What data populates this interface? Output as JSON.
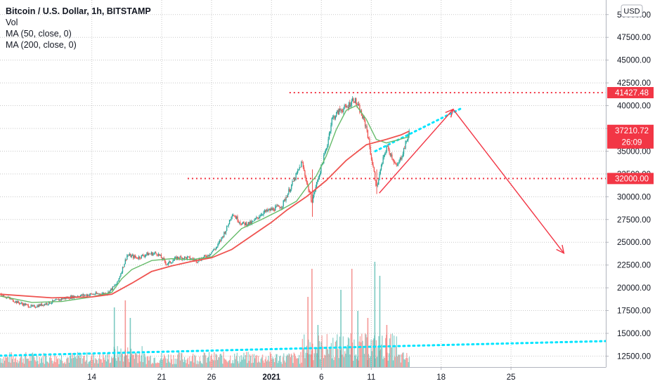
{
  "chart_data": {
    "type": "candlestick",
    "title": "Bitcoin / U.S. Dollar, 1h, BITSTAMP",
    "indicators": [
      "Vol",
      "MA (50, close, 0)",
      "MA (200, close, 0)"
    ],
    "currency": "USD",
    "y_ticks": [
      12500,
      15000,
      17500,
      20000,
      22500,
      25000,
      27500,
      30000,
      32500,
      35000,
      37500,
      40000,
      42500,
      45000,
      47500,
      50000
    ],
    "y_tick_labels": [
      "12500.00",
      "15000.00",
      "17500.00",
      "20000.00",
      "22500.00",
      "25000.00",
      "27500.00",
      "30000.00",
      "32500.00",
      "35000.00",
      "37500.00",
      "40000.00",
      "42500.00",
      "45000.00",
      "47500.00",
      "50000.00"
    ],
    "ylim": [
      11300,
      51600
    ],
    "x_ticks": [
      {
        "label": "14",
        "day": 14,
        "bold": false
      },
      {
        "label": "21",
        "day": 21,
        "bold": false
      },
      {
        "label": "26",
        "day": 26,
        "bold": false
      },
      {
        "label": "2021",
        "day": 32,
        "bold": true
      },
      {
        "label": "6",
        "day": 37,
        "bold": false
      },
      {
        "label": "11",
        "day": 42,
        "bold": false
      },
      {
        "label": "18",
        "day": 49,
        "bold": false
      },
      {
        "label": "25",
        "day": 56,
        "bold": false
      }
    ],
    "xlim_days": [
      4.8,
      65.5
    ],
    "price_path": [
      [
        4.8,
        19300
      ],
      [
        6.5,
        18400
      ],
      [
        8,
        17900
      ],
      [
        9.5,
        18300
      ],
      [
        11,
        18800
      ],
      [
        12.5,
        19100
      ],
      [
        14,
        19300
      ],
      [
        15.5,
        19400
      ],
      [
        16.5,
        20500
      ],
      [
        17.5,
        23600
      ],
      [
        18.5,
        23300
      ],
      [
        19.5,
        23700
      ],
      [
        20.5,
        23800
      ],
      [
        21.5,
        22600
      ],
      [
        22.5,
        23300
      ],
      [
        23.5,
        23300
      ],
      [
        24.5,
        23000
      ],
      [
        25.5,
        23500
      ],
      [
        26.5,
        24500
      ],
      [
        27.5,
        26600
      ],
      [
        28,
        28200
      ],
      [
        29,
        27000
      ],
      [
        30,
        27100
      ],
      [
        31,
        28200
      ],
      [
        32,
        28600
      ],
      [
        33,
        29000
      ],
      [
        34.5,
        32500
      ],
      [
        35,
        33800
      ],
      [
        35.5,
        31500
      ],
      [
        36,
        29500
      ],
      [
        36.5,
        31500
      ],
      [
        37.5,
        35500
      ],
      [
        38,
        38500
      ],
      [
        38.8,
        39500
      ],
      [
        39.5,
        39800
      ],
      [
        40.2,
        40800
      ],
      [
        40.8,
        39500
      ],
      [
        41.5,
        37500
      ],
      [
        42,
        34000
      ],
      [
        42.5,
        31000
      ],
      [
        43,
        33500
      ],
      [
        43.5,
        35500
      ],
      [
        44,
        34500
      ],
      [
        44.5,
        33200
      ],
      [
        45,
        34500
      ],
      [
        45.3,
        35500
      ],
      [
        45.8,
        37210
      ]
    ],
    "ma50": [
      [
        4.8,
        19100
      ],
      [
        8,
        18400
      ],
      [
        11,
        18500
      ],
      [
        14,
        19000
      ],
      [
        16,
        19500
      ],
      [
        17,
        21000
      ],
      [
        18,
        22000
      ],
      [
        20,
        23000
      ],
      [
        22,
        23200
      ],
      [
        24,
        23100
      ],
      [
        26,
        23400
      ],
      [
        27,
        24300
      ],
      [
        29,
        26500
      ],
      [
        31,
        27500
      ],
      [
        33,
        28600
      ],
      [
        34.5,
        29500
      ],
      [
        35.5,
        31000
      ],
      [
        36.5,
        32300
      ],
      [
        37.5,
        34500
      ],
      [
        38.5,
        37400
      ],
      [
        39.5,
        39500
      ],
      [
        40.5,
        40000
      ],
      [
        41.5,
        38500
      ],
      [
        42.5,
        36300
      ],
      [
        43.5,
        35900
      ],
      [
        44.5,
        36200
      ],
      [
        45.8,
        36600
      ]
    ],
    "ma200": [
      [
        4.8,
        19300
      ],
      [
        10,
        18900
      ],
      [
        14,
        19000
      ],
      [
        16,
        19300
      ],
      [
        18,
        20500
      ],
      [
        20,
        21800
      ],
      [
        22,
        22400
      ],
      [
        24,
        22900
      ],
      [
        26,
        23300
      ],
      [
        28,
        24200
      ],
      [
        30,
        25700
      ],
      [
        32,
        27200
      ],
      [
        33.5,
        28500
      ],
      [
        35.5,
        30000
      ],
      [
        37.5,
        31800
      ],
      [
        39.5,
        34000
      ],
      [
        41.5,
        35700
      ],
      [
        43.5,
        36300
      ],
      [
        45,
        36800
      ],
      [
        45.8,
        37200
      ]
    ],
    "volume_bars": [
      {
        "day": 16.2,
        "height": 85,
        "up": true
      },
      {
        "day": 17.3,
        "height": 95,
        "up": false
      },
      {
        "day": 17.8,
        "height": 70,
        "up": true
      },
      {
        "day": 35.6,
        "height": 100,
        "up": false
      },
      {
        "day": 36.0,
        "height": 140,
        "up": false
      },
      {
        "day": 36.6,
        "height": 60,
        "up": true
      },
      {
        "day": 38.9,
        "height": 110,
        "up": true
      },
      {
        "day": 40.0,
        "height": 140,
        "up": false
      },
      {
        "day": 40.6,
        "height": 80,
        "up": true
      },
      {
        "day": 41.6,
        "height": 70,
        "up": false
      },
      {
        "day": 42.3,
        "height": 150,
        "up": true
      },
      {
        "day": 42.8,
        "height": 130,
        "up": true
      },
      {
        "day": 43.5,
        "height": 60,
        "up": false
      }
    ],
    "horizontal_levels": [
      {
        "value": 41427.48,
        "label": "41427.48",
        "from_day": 33.8
      },
      {
        "value": 32000,
        "label": "32000.00",
        "from_day": 23.6
      }
    ],
    "last_price": {
      "value": 37210.72,
      "label": "37210.72",
      "countdown": "26:09"
    },
    "annotations": {
      "dotted_trend_low": [
        [
          4.8,
          12550
        ],
        [
          65.5,
          14150
        ]
      ],
      "dotted_channel": [
        [
          42.4,
          35000
        ],
        [
          51.2,
          39800
        ]
      ],
      "support_line": [
        [
          42.8,
          30400
        ],
        [
          50.2,
          39600
        ]
      ],
      "projection": [
        [
          50.2,
          39600
        ],
        [
          61.3,
          23800
        ]
      ]
    },
    "colors": {
      "up": "#26a69a",
      "down": "#ef5350",
      "ma50": "#66bb6a",
      "ma200": "#ef5350",
      "drawing": "#f23645",
      "cyan": "#00e5ff",
      "grid": "#c8c8c8",
      "text": "#131722"
    }
  }
}
